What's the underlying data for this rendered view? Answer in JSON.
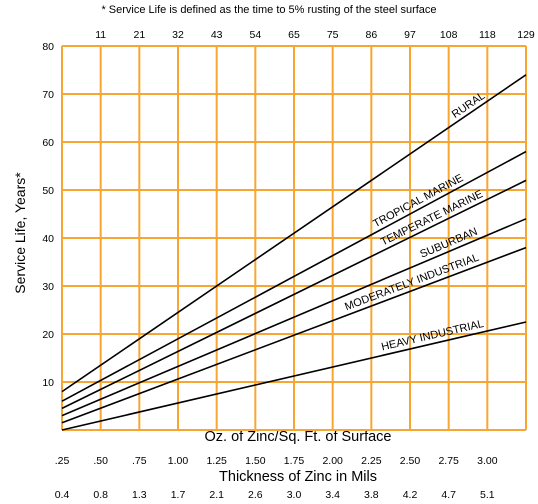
{
  "chart_data": {
    "type": "line",
    "note": "* Service Life is defined as the time to 5% rusting of the steel surface",
    "ylabel": "Service Life, Years*",
    "xlabel": "Oz. of Zinc/Sq. Ft. of Surface",
    "xlabel_secondary": "Thickness of Zinc in Mils",
    "ylim": [
      0,
      80
    ],
    "xlim": [
      0.25,
      3.0
    ],
    "y_ticks": [
      "10",
      "20",
      "30",
      "40",
      "50",
      "60",
      "70",
      "80"
    ],
    "x_ticks": [
      ".25",
      ".50",
      ".75",
      "1.00",
      "1.25",
      "1.50",
      "1.75",
      "2.00",
      "2.25",
      "2.50",
      "2.75",
      "3.00"
    ],
    "x_ticks_mils": [
      "0.4",
      "0.8",
      "1.3",
      "1.7",
      "2.1",
      "2.6",
      "3.0",
      "3.4",
      "3.8",
      "4.2",
      "4.7",
      "5.1"
    ],
    "x_ticks_top": [
      "11",
      "21",
      "32",
      "43",
      "54",
      "65",
      "75",
      "86",
      "97",
      "108",
      "118",
      "129"
    ],
    "grid": true,
    "grid_color": "#F7A533",
    "line_color": "#000000",
    "series": [
      {
        "name": "RURAL",
        "x": [
          0.25,
          3.0
        ],
        "y": [
          8,
          74
        ]
      },
      {
        "name": "TROPICAL MARINE",
        "x": [
          0.25,
          3.0
        ],
        "y": [
          6,
          58
        ]
      },
      {
        "name": "TEMPERATE MARINE",
        "x": [
          0.25,
          3.0
        ],
        "y": [
          4.5,
          52
        ]
      },
      {
        "name": "SUBURBAN",
        "x": [
          0.25,
          3.0
        ],
        "y": [
          3,
          44
        ]
      },
      {
        "name": "MODERATELY INDUSTRIAL",
        "x": [
          0.25,
          3.0
        ],
        "y": [
          1.5,
          38
        ]
      },
      {
        "name": "HEAVY INDUSTRIAL",
        "x": [
          0.25,
          3.0
        ],
        "y": [
          0,
          22.5
        ]
      }
    ]
  }
}
